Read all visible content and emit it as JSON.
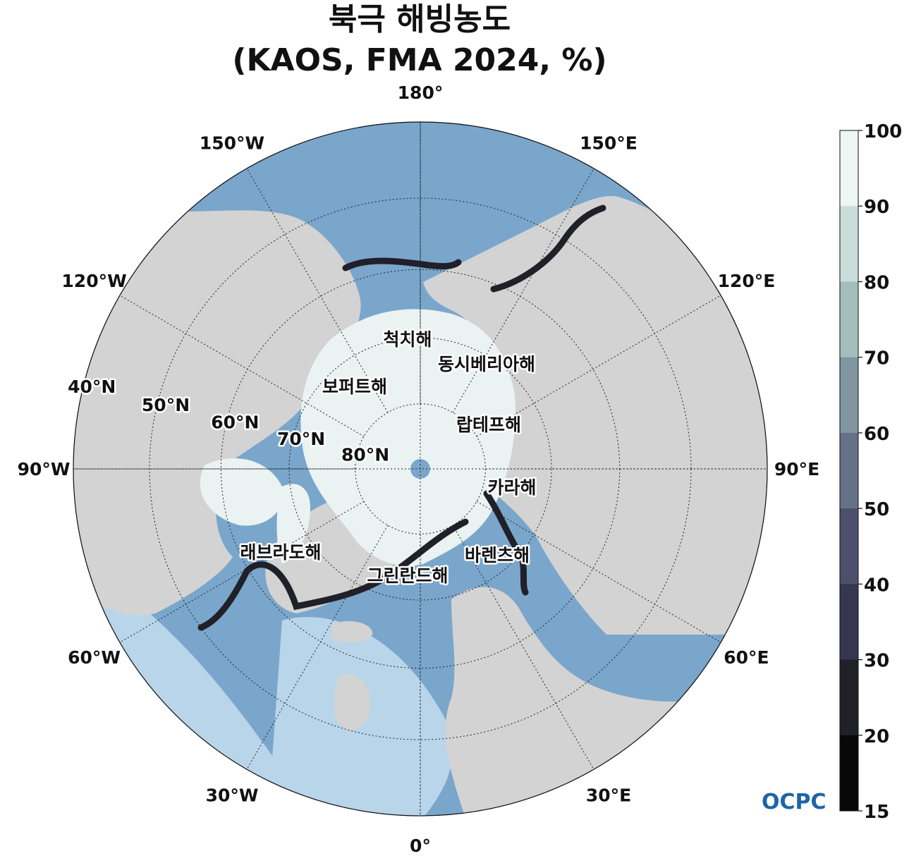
{
  "title": {
    "line1": "북극 해빙농도",
    "line2": "(KAOS, FMA 2024, %)"
  },
  "map": {
    "projection": "north-polar-stereographic",
    "center_latitude": 90,
    "southern_boundary_latitude": 40,
    "colors": {
      "ocean": "#7aa6cc",
      "ocean_light": "#b9d5ea",
      "land": "#d3d3d3",
      "ice_high": "#eaf3f2",
      "lakes": "#ffffff",
      "pole_hole": "#7aa6cc"
    },
    "longitude_labels": [
      {
        "lon": 180,
        "text": "180°"
      },
      {
        "lon": 150,
        "text": "150°E"
      },
      {
        "lon": 120,
        "text": "120°E"
      },
      {
        "lon": 90,
        "text": "90°E"
      },
      {
        "lon": 60,
        "text": "60°E"
      },
      {
        "lon": 30,
        "text": "30°E"
      },
      {
        "lon": 0,
        "text": "0°"
      },
      {
        "lon": -30,
        "text": "30°W"
      },
      {
        "lon": -60,
        "text": "60°W"
      },
      {
        "lon": -90,
        "text": "90°W"
      },
      {
        "lon": -120,
        "text": "120°W"
      },
      {
        "lon": -150,
        "text": "150°W"
      }
    ],
    "latitude_labels": [
      {
        "lat": 40,
        "text": "40°N"
      },
      {
        "lat": 50,
        "text": "50°N"
      },
      {
        "lat": 60,
        "text": "60°N"
      },
      {
        "lat": 70,
        "text": "70°N"
      },
      {
        "lat": 80,
        "text": "80°N"
      }
    ],
    "sea_labels": [
      {
        "text": "척치해"
      },
      {
        "text": "동시베리아해"
      },
      {
        "text": "보퍼트해"
      },
      {
        "text": "랍테프해"
      },
      {
        "text": "카라해"
      },
      {
        "text": "래브라도해"
      },
      {
        "text": "바렌츠해"
      },
      {
        "text": "그린란드해"
      }
    ]
  },
  "colorbar": {
    "ticks": [
      "100",
      "90",
      "80",
      "70",
      "60",
      "50",
      "40",
      "30",
      "20",
      "15"
    ],
    "levels": [
      {
        "from": 90,
        "to": 100,
        "color": "#eef5f4"
      },
      {
        "from": 80,
        "to": 90,
        "color": "#c9dedb"
      },
      {
        "from": 70,
        "to": 80,
        "color": "#a2bfbd"
      },
      {
        "from": 60,
        "to": 70,
        "color": "#8095a0"
      },
      {
        "from": 50,
        "to": 60,
        "color": "#657187"
      },
      {
        "from": 40,
        "to": 50,
        "color": "#4d4f6c"
      },
      {
        "from": 30,
        "to": 40,
        "color": "#37364f"
      },
      {
        "from": 20,
        "to": 30,
        "color": "#202029"
      },
      {
        "from": 15,
        "to": 20,
        "color": "#080808"
      }
    ]
  },
  "logo": {
    "text": "OCPC",
    "color": "#1e64a8"
  }
}
